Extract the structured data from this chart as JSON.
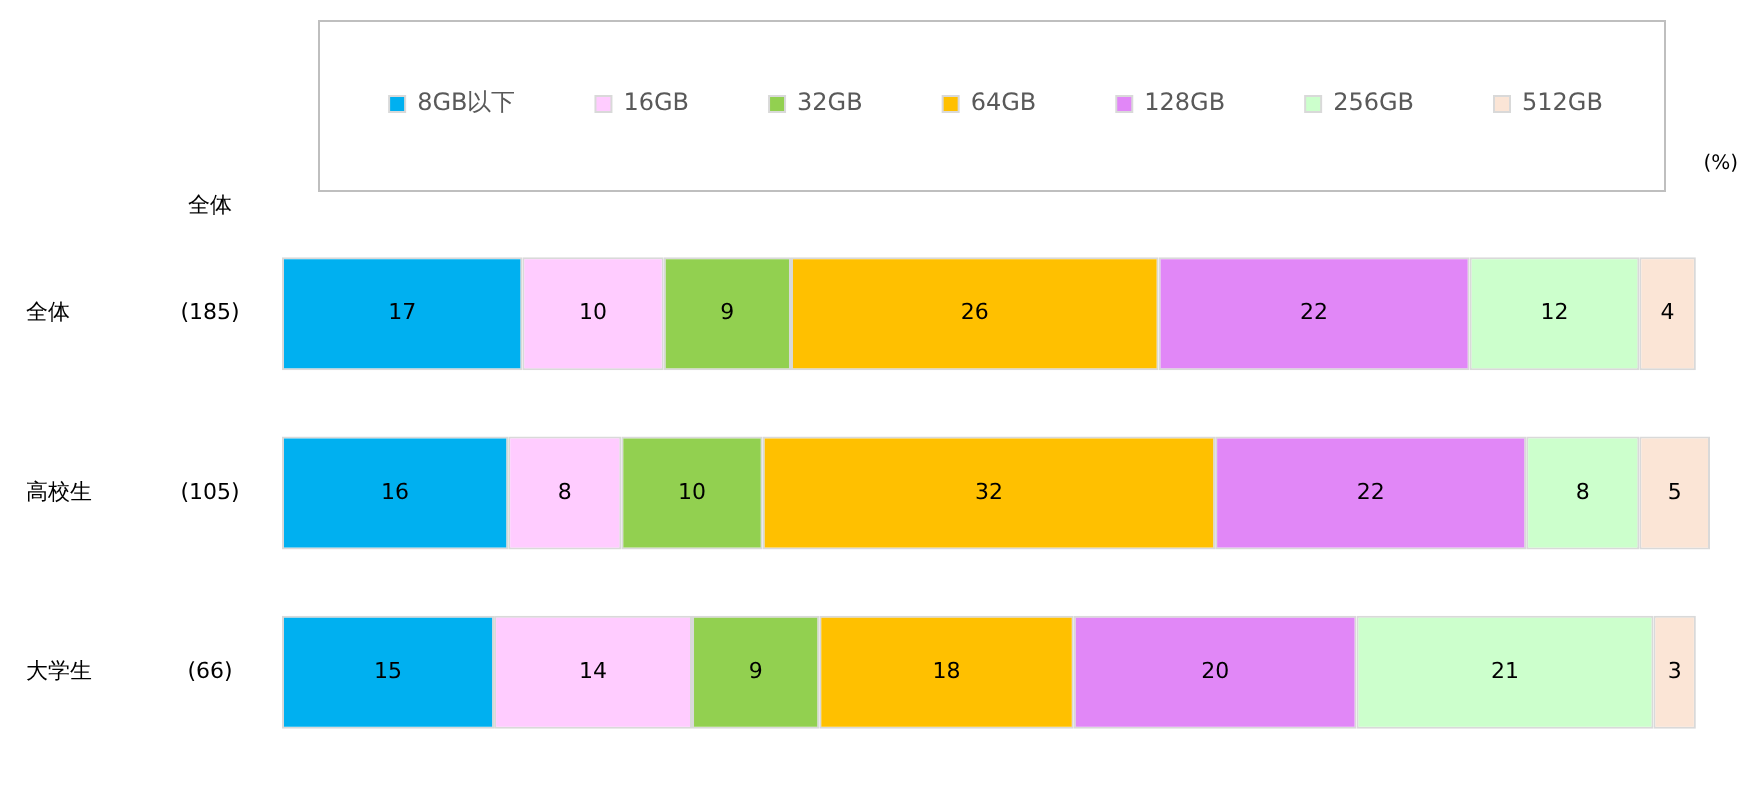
{
  "chart_data": {
    "type": "bar",
    "orientation": "horizontal",
    "stacked": true,
    "categories": [
      "全体",
      "高校生",
      "大学生"
    ],
    "series": [
      {
        "name": "8GB以下",
        "color": "#00b0f0",
        "values": [
          17,
          16,
          15
        ]
      },
      {
        "name": "16GB",
        "color": "#ffccff",
        "values": [
          10,
          8,
          14
        ]
      },
      {
        "name": "32GB",
        "color": "#92d050",
        "values": [
          9,
          10,
          9
        ]
      },
      {
        "name": "64GB",
        "color": "#ffc000",
        "values": [
          26,
          32,
          18
        ]
      },
      {
        "name": "128GB",
        "color": "#e187f7",
        "values": [
          22,
          22,
          20
        ]
      },
      {
        "name": "256GB",
        "color": "#ccffcc",
        "values": [
          12,
          8,
          21
        ]
      },
      {
        "name": "512GB",
        "color": "#fbe5d6",
        "values": [
          4,
          5,
          3
        ]
      }
    ],
    "xlim": [
      0,
      101
    ],
    "xlabel": "(%)",
    "annotations": [
      "全体",
      "(185)",
      "(105)",
      "(66)"
    ],
    "data_labels": true,
    "legend": "top",
    "tick_labels": "y",
    "grid": false
  }
}
